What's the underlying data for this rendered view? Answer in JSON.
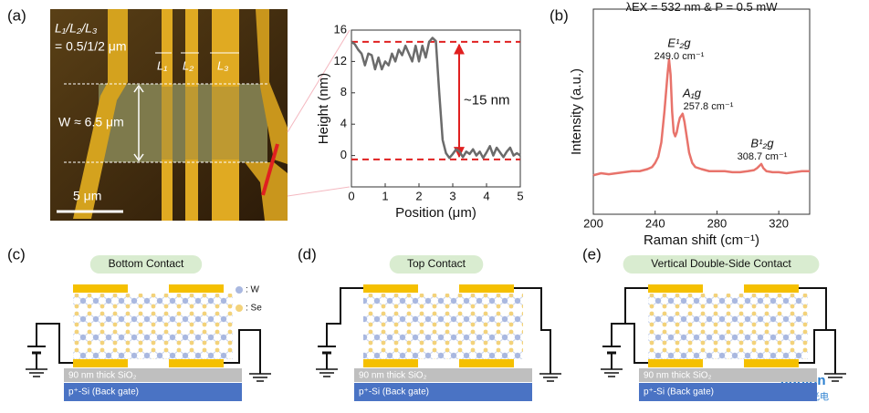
{
  "panel_labels": [
    "(a)",
    "(b)",
    "(c)",
    "(d)",
    "(e)"
  ],
  "micrograph": {
    "ratio_label": "L₁/L₂/L₃",
    "ratio_values": "= 0.5/1/2 μm",
    "l1": "L₁",
    "l2": "L₂",
    "l3": "L₃",
    "width_label": "W ≈ 6.5 μm",
    "scale_bar": "5 μm"
  },
  "chart_data": [
    {
      "type": "line",
      "xlabel": "Position (μm)",
      "ylabel": "Height (nm)",
      "color": "#6b6b6b",
      "x": [
        0,
        0.1,
        0.2,
        0.3,
        0.4,
        0.5,
        0.6,
        0.7,
        0.8,
        0.9,
        1.0,
        1.1,
        1.2,
        1.3,
        1.4,
        1.5,
        1.6,
        1.7,
        1.8,
        1.9,
        2.0,
        2.1,
        2.2,
        2.3,
        2.4,
        2.5,
        2.6,
        2.7,
        2.8,
        2.9,
        3.0,
        3.1,
        3.2,
        3.3,
        3.4,
        3.5,
        3.6,
        3.7,
        3.8,
        3.9,
        4.0,
        4.1,
        4.2,
        4.3,
        4.4,
        4.5,
        4.6,
        4.7,
        4.8,
        4.9,
        5.0
      ],
      "values": [
        14.5,
        14.2,
        13.5,
        13,
        11.5,
        13,
        12.8,
        11,
        12.5,
        11,
        12,
        11.5,
        13,
        12,
        13.5,
        12.8,
        14,
        13,
        12,
        14,
        12,
        14,
        12.5,
        14.5,
        15,
        14.6,
        8,
        2,
        0.3,
        -0.3,
        0.2,
        0.8,
        0.5,
        -0.2,
        0.5,
        0.2,
        0.8,
        0,
        0.5,
        -0.3,
        0.4,
        1.2,
        0,
        1,
        0.4,
        -0.2,
        0.5,
        1,
        0,
        0.3,
        0
      ],
      "xlim": [
        0,
        5
      ],
      "xticks": [
        0,
        1,
        2,
        3,
        4,
        5
      ],
      "ylim": [
        -4,
        16
      ],
      "yticks": [
        0,
        4,
        8,
        12,
        16
      ],
      "reference_lines": [
        14.5,
        -0.5
      ],
      "reference_color": "#e02020",
      "annotation": "~15 nm"
    },
    {
      "type": "line",
      "title": "λEX = 532 nm & P = 0.5 mW",
      "xlabel": "Raman shift (cm⁻¹)",
      "ylabel": "Intensity (a.u.)",
      "color": "#e8736b",
      "x": [
        200,
        205,
        210,
        215,
        220,
        225,
        230,
        235,
        238,
        240,
        242,
        244,
        246,
        248,
        249,
        250,
        251,
        252,
        253,
        254,
        255,
        256,
        257.8,
        259,
        260,
        262,
        264,
        266,
        270,
        275,
        280,
        285,
        290,
        295,
        300,
        304,
        306,
        308.7,
        310,
        312,
        316,
        320,
        325,
        330,
        335,
        340
      ],
      "values": [
        19,
        20,
        19.5,
        20,
        20.5,
        21,
        21,
        22,
        23,
        25,
        28,
        35,
        50,
        68,
        75.5,
        68,
        50,
        40,
        38,
        40,
        44,
        47,
        49,
        45,
        40,
        30,
        25,
        23,
        22,
        21,
        21,
        21,
        20.5,
        20.5,
        21,
        21.5,
        22.5,
        24.5,
        22.5,
        21,
        20.5,
        20.5,
        20,
        20.5,
        21,
        21
      ],
      "xlim": [
        200,
        340
      ],
      "xticks": [
        200,
        240,
        280,
        320
      ],
      "ylim": [
        0,
        100
      ],
      "peaks": [
        {
          "name": "E¹₂g",
          "label": "249.0 cm⁻¹"
        },
        {
          "name": "A₁g",
          "label": "257.8 cm⁻¹"
        },
        {
          "name": "B¹₂g",
          "label": "308.7 cm⁻¹"
        }
      ]
    }
  ],
  "diagrams": [
    {
      "title": "Bottom Contact",
      "legend": [
        ": W",
        ": Se"
      ],
      "oxide": "90 nm thick SiO₂",
      "gate": "p⁺-Si (Back gate)"
    },
    {
      "title": "Top Contact",
      "oxide": "90 nm thick SiO₂",
      "gate": "p⁺-Si (Back gate)"
    },
    {
      "title": "Vertical Double-Side Contact",
      "oxide": "90 nm thick SiO₂",
      "gate": "p⁺-Si (Back gate)"
    }
  ],
  "watermark": {
    "brand": "aunion",
    "subtitle": "艾邦光电"
  }
}
